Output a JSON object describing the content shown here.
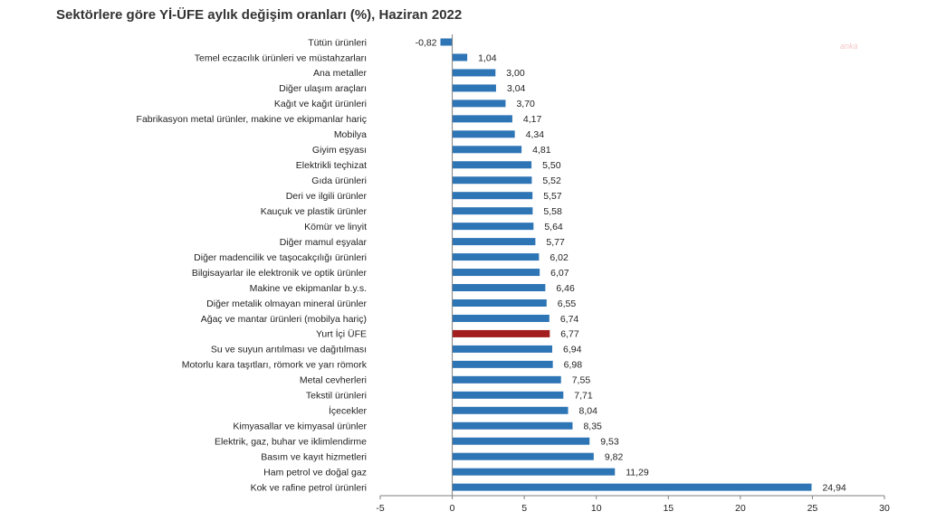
{
  "watermark": "anka",
  "colors": {
    "bar": "#2e75b6",
    "highlight": "#a31f1f",
    "axis": "#7f7f7f"
  },
  "chart_data": {
    "type": "bar",
    "orientation": "horizontal",
    "title": "Sektörlere göre Yİ-ÜFE aylık değişim oranları (%), Haziran 2022",
    "xlabel": "",
    "ylabel": "",
    "xlim": [
      -5,
      30
    ],
    "xticks": [
      "-5",
      "0",
      "5",
      "10",
      "15",
      "20",
      "25",
      "30"
    ],
    "grid": false,
    "highlight_category": "Yurt İçi ÜFE",
    "categories": [
      "Tütün ürünleri",
      "Temel eczacılık ürünleri ve müstahzarları",
      "Ana metaller",
      "Diğer ulaşım araçları",
      "Kağıt ve kağıt ürünleri",
      "Fabrikasyon metal ürünler, makine ve ekipmanlar hariç",
      "Mobilya",
      "Giyim eşyası",
      "Elektrikli teçhizat",
      "Gıda ürünleri",
      "Deri ve ilgili ürünler",
      "Kauçuk ve plastik ürünler",
      "Kömür ve linyit",
      "Diğer mamul eşyalar",
      "Diğer madencilik ve taşocakçılığı ürünleri",
      "Bilgisayarlar ile elektronik ve optik ürünler",
      "Makine ve ekipmanlar b.y.s.",
      "Diğer metalik olmayan mineral ürünler",
      "Ağaç ve mantar ürünleri (mobilya hariç)",
      "Yurt İçi ÜFE",
      "Su ve suyun arıtılması ve dağıtılması",
      "Motorlu kara taşıtları, römork ve yarı römork",
      "Metal cevherleri",
      "Tekstil ürünleri",
      "İçecekler",
      "Kimyasallar ve kimyasal ürünler",
      "Elektrik, gaz, buhar ve iklimlendirme",
      "Basım ve kayıt hizmetleri",
      "Ham petrol ve doğal gaz",
      "Kok ve rafine petrol ürünleri"
    ],
    "values": [
      -0.82,
      1.04,
      3.0,
      3.04,
      3.7,
      4.17,
      4.34,
      4.81,
      5.5,
      5.52,
      5.57,
      5.58,
      5.64,
      5.77,
      6.02,
      6.07,
      6.46,
      6.55,
      6.74,
      6.77,
      6.94,
      6.98,
      7.55,
      7.71,
      8.04,
      8.35,
      9.53,
      9.82,
      11.29,
      24.94
    ],
    "value_labels": [
      "-0,82",
      "1,04",
      "3,00",
      "3,04",
      "3,70",
      "4,17",
      "4,34",
      "4,81",
      "5,50",
      "5,52",
      "5,57",
      "5,58",
      "5,64",
      "5,77",
      "6,02",
      "6,07",
      "6,46",
      "6,55",
      "6,74",
      "6,77",
      "6,94",
      "6,98",
      "7,55",
      "7,71",
      "8,04",
      "8,35",
      "9,53",
      "9,82",
      "11,29",
      "24,94"
    ]
  }
}
